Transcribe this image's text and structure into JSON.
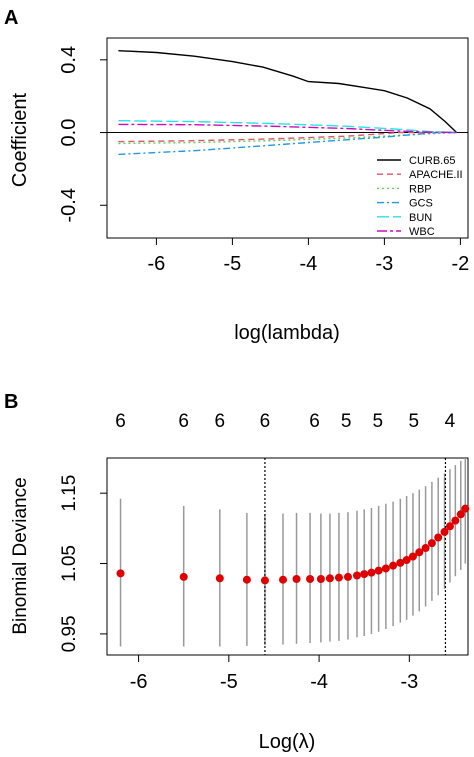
{
  "chart_data": [
    {
      "panel_label": "A",
      "type": "line",
      "xlabel": "log(lambda)",
      "ylabel": "Coefficient",
      "xlim": [
        -6.65,
        -1.9
      ],
      "ylim": [
        -0.58,
        0.52
      ],
      "xticks": [
        -6,
        -5,
        -4,
        -3,
        -2
      ],
      "xtick_labels": [
        "-6",
        "-5",
        "-4",
        "-3",
        "-2"
      ],
      "yticks": [
        -0.4,
        0.0,
        0.4
      ],
      "ytick_labels": [
        "-0.4",
        "0.0",
        "0.4"
      ],
      "grid": false,
      "legend_position": "bottom-right",
      "series": [
        {
          "name": "CURB.65",
          "color": "#000000",
          "dash": "solid",
          "x": [
            -6.5,
            -6.0,
            -5.5,
            -5.0,
            -4.6,
            -4.2,
            -4.0,
            -3.6,
            -3.3,
            -3.0,
            -2.7,
            -2.4,
            -2.2,
            -2.05
          ],
          "y": [
            0.45,
            0.44,
            0.42,
            0.39,
            0.36,
            0.31,
            0.28,
            0.27,
            0.25,
            0.23,
            0.19,
            0.13,
            0.06,
            0.0
          ]
        },
        {
          "name": "APACHE.II",
          "color": "#df536b",
          "dash": "6,4",
          "x": [
            -6.5,
            -5.5,
            -4.5,
            -3.5,
            -2.8,
            -2.4,
            -2.05
          ],
          "y": [
            -0.05,
            -0.045,
            -0.035,
            -0.02,
            0.0,
            0.0,
            0.0
          ]
        },
        {
          "name": "RBP",
          "color": "#61d04f",
          "dash": "2,3",
          "x": [
            -6.5,
            -5.5,
            -4.5,
            -3.5,
            -2.8,
            -2.3,
            -2.05
          ],
          "y": [
            -0.06,
            -0.055,
            -0.045,
            -0.03,
            -0.015,
            -0.005,
            0.0
          ]
        },
        {
          "name": "GCS",
          "color": "#2297e6",
          "dash": "7,3,2,3",
          "x": [
            -6.5,
            -6.0,
            -5.5,
            -5.0,
            -4.5,
            -4.0,
            -3.5,
            -3.0,
            -2.6,
            -2.3,
            -2.05
          ],
          "y": [
            -0.12,
            -0.11,
            -0.1,
            -0.085,
            -0.07,
            -0.055,
            -0.04,
            -0.025,
            -0.01,
            0.0,
            0.0
          ]
        },
        {
          "name": "BUN",
          "color": "#28e2e5",
          "dash": "12,4",
          "x": [
            -6.5,
            -5.5,
            -4.5,
            -3.5,
            -2.8,
            -2.4,
            -2.05
          ],
          "y": [
            0.065,
            0.06,
            0.05,
            0.035,
            0.018,
            0.005,
            0.0
          ]
        },
        {
          "name": "WBC",
          "color": "#cd0bbc",
          "dash": "10,3,3,3",
          "x": [
            -6.5,
            -5.5,
            -4.5,
            -3.5,
            -2.9,
            -2.5,
            -2.05
          ],
          "y": [
            0.045,
            0.043,
            0.035,
            0.022,
            0.01,
            0.003,
            0.0
          ]
        }
      ]
    },
    {
      "panel_label": "B",
      "type": "scatter",
      "xlabel": "Log(λ)",
      "ylabel": "Binomial Deviance",
      "xlim": [
        -6.35,
        -2.35
      ],
      "ylim": [
        0.92,
        1.2
      ],
      "xticks": [
        -6,
        -5,
        -4,
        -3
      ],
      "xtick_labels": [
        "-6",
        "-5",
        "-4",
        "-3"
      ],
      "yticks": [
        0.95,
        1.05,
        1.15
      ],
      "ytick_labels": [
        "0.95",
        "1.05",
        "1.15"
      ],
      "grid": false,
      "point_color": "#e00000",
      "error_bar_color": "#999999",
      "vlines": [
        -4.6,
        -2.6
      ],
      "top_axis_labels": [
        {
          "x": -6.2,
          "label": "6"
        },
        {
          "x": -5.5,
          "label": "6"
        },
        {
          "x": -5.1,
          "label": "6"
        },
        {
          "x": -4.6,
          "label": "6"
        },
        {
          "x": -4.05,
          "label": "6"
        },
        {
          "x": -3.7,
          "label": "5"
        },
        {
          "x": -3.35,
          "label": "5"
        },
        {
          "x": -2.95,
          "label": "5"
        },
        {
          "x": -2.55,
          "label": "4"
        }
      ],
      "points": [
        {
          "x": -6.2,
          "y": 1.036,
          "lo": 0.932,
          "hi": 1.142
        },
        {
          "x": -5.5,
          "y": 1.031,
          "lo": 0.932,
          "hi": 1.132
        },
        {
          "x": -5.1,
          "y": 1.029,
          "lo": 0.932,
          "hi": 1.127
        },
        {
          "x": -4.8,
          "y": 1.027,
          "lo": 0.933,
          "hi": 1.122
        },
        {
          "x": -4.6,
          "y": 1.026,
          "lo": 0.934,
          "hi": 1.12
        },
        {
          "x": -4.4,
          "y": 1.027,
          "lo": 0.935,
          "hi": 1.121
        },
        {
          "x": -4.25,
          "y": 1.028,
          "lo": 0.936,
          "hi": 1.122
        },
        {
          "x": -4.1,
          "y": 1.028,
          "lo": 0.937,
          "hi": 1.122
        },
        {
          "x": -3.98,
          "y": 1.028,
          "lo": 0.938,
          "hi": 1.121
        },
        {
          "x": -3.88,
          "y": 1.029,
          "lo": 0.939,
          "hi": 1.121
        },
        {
          "x": -3.78,
          "y": 1.03,
          "lo": 0.94,
          "hi": 1.122
        },
        {
          "x": -3.68,
          "y": 1.031,
          "lo": 0.942,
          "hi": 1.123
        },
        {
          "x": -3.58,
          "y": 1.033,
          "lo": 0.945,
          "hi": 1.125
        },
        {
          "x": -3.5,
          "y": 1.035,
          "lo": 0.947,
          "hi": 1.127
        },
        {
          "x": -3.42,
          "y": 1.037,
          "lo": 0.95,
          "hi": 1.129
        },
        {
          "x": -3.34,
          "y": 1.04,
          "lo": 0.953,
          "hi": 1.132
        },
        {
          "x": -3.26,
          "y": 1.043,
          "lo": 0.957,
          "hi": 1.135
        },
        {
          "x": -3.18,
          "y": 1.047,
          "lo": 0.961,
          "hi": 1.138
        },
        {
          "x": -3.1,
          "y": 1.051,
          "lo": 0.966,
          "hi": 1.142
        },
        {
          "x": -3.03,
          "y": 1.055,
          "lo": 0.97,
          "hi": 1.146
        },
        {
          "x": -2.96,
          "y": 1.06,
          "lo": 0.976,
          "hi": 1.15
        },
        {
          "x": -2.89,
          "y": 1.066,
          "lo": 0.982,
          "hi": 1.155
        },
        {
          "x": -2.82,
          "y": 1.072,
          "lo": 0.989,
          "hi": 1.16
        },
        {
          "x": -2.75,
          "y": 1.079,
          "lo": 0.997,
          "hi": 1.166
        },
        {
          "x": -2.68,
          "y": 1.087,
          "lo": 1.005,
          "hi": 1.172
        },
        {
          "x": -2.61,
          "y": 1.095,
          "lo": 1.014,
          "hi": 1.178
        },
        {
          "x": -2.55,
          "y": 1.103,
          "lo": 1.023,
          "hi": 1.184
        },
        {
          "x": -2.49,
          "y": 1.111,
          "lo": 1.032,
          "hi": 1.19
        },
        {
          "x": -2.43,
          "y": 1.12,
          "lo": 1.041,
          "hi": 1.196
        },
        {
          "x": -2.38,
          "y": 1.128,
          "lo": 1.05,
          "hi": 1.2
        }
      ]
    }
  ]
}
